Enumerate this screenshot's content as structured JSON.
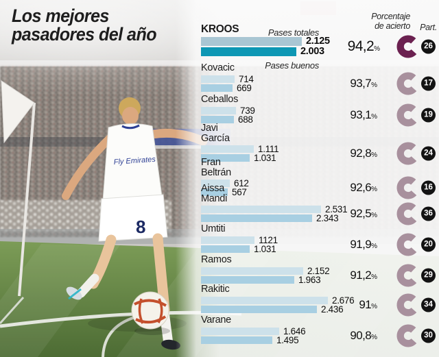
{
  "title": {
    "line1": "Los mejores",
    "line2": "pasadores del año"
  },
  "legend": {
    "series1": "Pases totales",
    "series2": "Pases buenos",
    "accuracy_line1": "Porcentaje",
    "accuracy_line2": "de acierto",
    "matches": "Part.",
    "percent_sign": "%"
  },
  "photo": {
    "jersey_sponsor": "Fly Emirates",
    "shirt_number": "8"
  },
  "colors": {
    "bar_total": "#cde1ea",
    "bar_good": "#a8cfe2",
    "bar_total_lead": "#a9c6d3",
    "bar_good_lead": "#0d97b4",
    "ring_normal": "#a8909d",
    "ring_lead": "#6b2150",
    "badge_bg": "#131313",
    "badge_text": "#ffffff"
  },
  "chart_data": {
    "type": "bar",
    "orientation": "horizontal",
    "series": [
      "Pases totales",
      "Pases buenos"
    ],
    "value_note": "Pass totals per player; accuracy percentage ring and matches played (Part.) badge at right",
    "players": [
      {
        "name": "KROOS",
        "total_label": "2.125",
        "total": 2125,
        "good_label": "2.003",
        "good": 2003,
        "accuracy_label": "94,2",
        "accuracy": 94.2,
        "matches": "26"
      },
      {
        "name": "Kovacic",
        "total_label": "714",
        "total": 714,
        "good_label": "669",
        "good": 669,
        "accuracy_label": "93,7",
        "accuracy": 93.7,
        "matches": "17"
      },
      {
        "name": "Ceballos",
        "total_label": "739",
        "total": 739,
        "good_label": "688",
        "good": 688,
        "accuracy_label": "93,1",
        "accuracy": 93.1,
        "matches": "19"
      },
      {
        "name": "Javi García",
        "total_label": "1.111",
        "total": 1111,
        "good_label": "1.031",
        "good": 1031,
        "accuracy_label": "92,8",
        "accuracy": 92.8,
        "matches": "24"
      },
      {
        "name": "Fran Beltrán",
        "total_label": "612",
        "total": 612,
        "good_label": "567",
        "good": 567,
        "accuracy_label": "92,6",
        "accuracy": 92.6,
        "matches": "16"
      },
      {
        "name": "Aissa Mandi",
        "total_label": "2.531",
        "total": 2531,
        "good_label": "2.343",
        "good": 2343,
        "accuracy_label": "92,5",
        "accuracy": 92.5,
        "matches": "36"
      },
      {
        "name": "Umtiti",
        "total_label": "1121",
        "total": 1121,
        "good_label": "1.031",
        "good": 1031,
        "accuracy_label": "91,9",
        "accuracy": 91.9,
        "matches": "20"
      },
      {
        "name": "Ramos",
        "total_label": "2.152",
        "total": 2152,
        "good_label": "1.963",
        "good": 1963,
        "accuracy_label": "91,2",
        "accuracy": 91.2,
        "matches": "29"
      },
      {
        "name": "Rakitic",
        "total_label": "2.676",
        "total": 2676,
        "good_label": "2.436",
        "good": 2436,
        "accuracy_label": "91",
        "accuracy": 91.0,
        "matches": "34"
      },
      {
        "name": "Varane",
        "total_label": "1.646",
        "total": 1646,
        "good_label": "1.495",
        "good": 1495,
        "accuracy_label": "90,8",
        "accuracy": 90.8,
        "matches": "30"
      }
    ]
  }
}
